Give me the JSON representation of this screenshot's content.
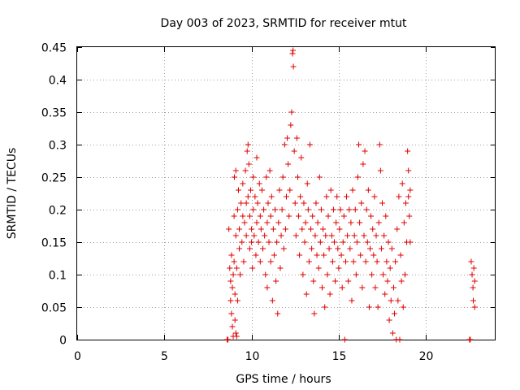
{
  "chart_data": {
    "type": "scatter",
    "title": "Day 003 of 2023, SRMTID for receiver mtut",
    "xlabel": "GPS time / hours",
    "ylabel": "SRMTID / TECUs",
    "xlim": [
      0,
      24
    ],
    "ylim": [
      0,
      0.45
    ],
    "xticks": [
      "0",
      "5",
      "10",
      "15",
      "20"
    ],
    "yticks": [
      "0",
      "0.05",
      "0.1",
      "0.15",
      "0.2",
      "0.25",
      "0.3",
      "0.35",
      "0.4",
      "0.45"
    ],
    "grid": true,
    "marker": "plus",
    "color": "#e00000",
    "series": [
      {
        "name": "SRMTID",
        "points": [
          [
            8.6,
            0.0
          ],
          [
            8.65,
            0.0
          ],
          [
            8.7,
            0.17
          ],
          [
            8.75,
            0.11
          ],
          [
            8.8,
            0.09
          ],
          [
            8.8,
            0.06
          ],
          [
            8.85,
            0.04
          ],
          [
            8.85,
            0.13
          ],
          [
            8.9,
            0.08
          ],
          [
            8.9,
            0.02
          ],
          [
            8.95,
            0.005
          ],
          [
            8.95,
            0.1
          ],
          [
            9.0,
            0.19
          ],
          [
            9.0,
            0.12
          ],
          [
            9.02,
            0.25
          ],
          [
            9.05,
            0.07
          ],
          [
            9.05,
            0.03
          ],
          [
            9.1,
            0.26
          ],
          [
            9.1,
            0.16
          ],
          [
            9.1,
            0.01
          ],
          [
            9.15,
            0.11
          ],
          [
            9.15,
            0.005
          ],
          [
            9.2,
            0.06
          ],
          [
            9.2,
            0.2
          ],
          [
            9.25,
            0.23
          ],
          [
            9.3,
            0.14
          ],
          [
            9.3,
            0.17
          ],
          [
            9.35,
            0.1
          ],
          [
            9.4,
            0.21
          ],
          [
            9.45,
            0.15
          ],
          [
            9.5,
            0.19
          ],
          [
            9.5,
            0.24
          ],
          [
            9.55,
            0.12
          ],
          [
            9.6,
            0.18
          ],
          [
            9.65,
            0.26
          ],
          [
            9.7,
            0.16
          ],
          [
            9.7,
            0.21
          ],
          [
            9.75,
            0.29
          ],
          [
            9.8,
            0.3
          ],
          [
            9.8,
            0.22
          ],
          [
            9.85,
            0.27
          ],
          [
            9.9,
            0.14
          ],
          [
            9.9,
            0.19
          ],
          [
            9.95,
            0.23
          ],
          [
            10.0,
            0.15
          ],
          [
            10.0,
            0.17
          ],
          [
            10.05,
            0.11
          ],
          [
            10.1,
            0.2
          ],
          [
            10.1,
            0.25
          ],
          [
            10.15,
            0.16
          ],
          [
            10.2,
            0.22
          ],
          [
            10.25,
            0.13
          ],
          [
            10.3,
            0.28
          ],
          [
            10.3,
            0.18
          ],
          [
            10.35,
            0.21
          ],
          [
            10.4,
            0.15
          ],
          [
            10.45,
            0.24
          ],
          [
            10.5,
            0.19
          ],
          [
            10.5,
            0.12
          ],
          [
            10.55,
            0.17
          ],
          [
            10.6,
            0.23
          ],
          [
            10.65,
            0.14
          ],
          [
            10.7,
            0.2
          ],
          [
            10.75,
            0.16
          ],
          [
            10.8,
            0.1
          ],
          [
            10.85,
            0.25
          ],
          [
            10.9,
            0.18
          ],
          [
            10.9,
            0.08
          ],
          [
            10.95,
            0.21
          ],
          [
            11.0,
            0.15
          ],
          [
            11.05,
            0.26
          ],
          [
            11.1,
            0.12
          ],
          [
            11.1,
            0.19
          ],
          [
            11.15,
            0.22
          ],
          [
            11.2,
            0.06
          ],
          [
            11.25,
            0.17
          ],
          [
            11.3,
            0.13
          ],
          [
            11.35,
            0.2
          ],
          [
            11.4,
            0.09
          ],
          [
            11.45,
            0.15
          ],
          [
            11.5,
            0.04
          ],
          [
            11.55,
            0.18
          ],
          [
            11.6,
            0.23
          ],
          [
            11.65,
            0.11
          ],
          [
            11.7,
            0.16
          ],
          [
            11.75,
            0.2
          ],
          [
            11.8,
            0.25
          ],
          [
            11.85,
            0.14
          ],
          [
            11.9,
            0.3
          ],
          [
            11.95,
            0.17
          ],
          [
            12.0,
            0.22
          ],
          [
            12.05,
            0.31
          ],
          [
            12.1,
            0.27
          ],
          [
            12.15,
            0.19
          ],
          [
            12.2,
            0.23
          ],
          [
            12.25,
            0.33
          ],
          [
            12.3,
            0.35
          ],
          [
            12.35,
            0.44
          ],
          [
            12.38,
            0.445
          ],
          [
            12.4,
            0.42
          ],
          [
            12.45,
            0.29
          ],
          [
            12.5,
            0.21
          ],
          [
            12.55,
            0.16
          ],
          [
            12.6,
            0.31
          ],
          [
            12.65,
            0.25
          ],
          [
            12.7,
            0.19
          ],
          [
            12.75,
            0.13
          ],
          [
            12.8,
            0.22
          ],
          [
            12.85,
            0.28
          ],
          [
            12.9,
            0.17
          ],
          [
            12.95,
            0.1
          ],
          [
            13.0,
            0.21
          ],
          [
            13.05,
            0.15
          ],
          [
            13.1,
            0.18
          ],
          [
            13.15,
            0.07
          ],
          [
            13.2,
            0.24
          ],
          [
            13.25,
            0.2
          ],
          [
            13.3,
            0.12
          ],
          [
            13.35,
            0.3
          ],
          [
            13.4,
            0.17
          ],
          [
            13.45,
            0.14
          ],
          [
            13.5,
            0.19
          ],
          [
            13.55,
            0.09
          ],
          [
            13.6,
            0.04
          ],
          [
            13.65,
            0.16
          ],
          [
            13.7,
            0.21
          ],
          [
            13.75,
            0.13
          ],
          [
            13.8,
            0.18
          ],
          [
            13.85,
            0.11
          ],
          [
            13.9,
            0.25
          ],
          [
            13.95,
            0.15
          ],
          [
            14.0,
            0.2
          ],
          [
            14.05,
            0.08
          ],
          [
            14.1,
            0.17
          ],
          [
            14.15,
            0.13
          ],
          [
            14.2,
            0.05
          ],
          [
            14.25,
            0.16
          ],
          [
            14.3,
            0.22
          ],
          [
            14.35,
            0.1
          ],
          [
            14.4,
            0.19
          ],
          [
            14.45,
            0.14
          ],
          [
            14.5,
            0.07
          ],
          [
            14.55,
            0.23
          ],
          [
            14.6,
            0.16
          ],
          [
            14.65,
            0.12
          ],
          [
            14.7,
            0.2
          ],
          [
            14.75,
            0.15
          ],
          [
            14.8,
            0.09
          ],
          [
            14.85,
            0.18
          ],
          [
            14.9,
            0.22
          ],
          [
            14.95,
            0.14
          ],
          [
            15.0,
            0.11
          ],
          [
            15.05,
            0.17
          ],
          [
            15.1,
            0.2
          ],
          [
            15.15,
            0.13
          ],
          [
            15.2,
            0.08
          ],
          [
            15.25,
            0.15
          ],
          [
            15.3,
            0.19
          ],
          [
            15.35,
            0.0
          ],
          [
            15.4,
            0.12
          ],
          [
            15.45,
            0.22
          ],
          [
            15.5,
            0.16
          ],
          [
            15.55,
            0.09
          ],
          [
            15.6,
            0.2
          ],
          [
            15.65,
            0.14
          ],
          [
            15.7,
            0.18
          ],
          [
            15.75,
            0.06
          ],
          [
            15.8,
            0.23
          ],
          [
            15.85,
            0.12
          ],
          [
            15.9,
            0.16
          ],
          [
            15.95,
            0.2
          ],
          [
            16.0,
            0.1
          ],
          [
            16.05,
            0.15
          ],
          [
            16.1,
            0.25
          ],
          [
            16.15,
            0.3
          ],
          [
            16.2,
            0.18
          ],
          [
            16.25,
            0.13
          ],
          [
            16.3,
            0.21
          ],
          [
            16.35,
            0.08
          ],
          [
            16.4,
            0.27
          ],
          [
            16.45,
            0.16
          ],
          [
            16.5,
            0.29
          ],
          [
            16.55,
            0.12
          ],
          [
            16.6,
            0.2
          ],
          [
            16.65,
            0.15
          ],
          [
            16.7,
            0.23
          ],
          [
            16.75,
            0.05
          ],
          [
            16.8,
            0.14
          ],
          [
            16.85,
            0.19
          ],
          [
            16.9,
            0.1
          ],
          [
            16.95,
            0.17
          ],
          [
            17.0,
            0.13
          ],
          [
            17.05,
            0.22
          ],
          [
            17.1,
            0.08
          ],
          [
            17.15,
            0.16
          ],
          [
            17.2,
            0.12
          ],
          [
            17.25,
            0.05
          ],
          [
            17.3,
            0.18
          ],
          [
            17.35,
            0.3
          ],
          [
            17.4,
            0.26
          ],
          [
            17.45,
            0.14
          ],
          [
            17.5,
            0.21
          ],
          [
            17.55,
            0.1
          ],
          [
            17.6,
            0.16
          ],
          [
            17.65,
            0.07
          ],
          [
            17.7,
            0.19
          ],
          [
            17.75,
            0.12
          ],
          [
            17.8,
            0.09
          ],
          [
            17.85,
            0.15
          ],
          [
            17.9,
            0.03
          ],
          [
            17.95,
            0.11
          ],
          [
            18.0,
            0.06
          ],
          [
            18.05,
            0.14
          ],
          [
            18.1,
            0.01
          ],
          [
            18.15,
            0.08
          ],
          [
            18.2,
            0.04
          ],
          [
            18.25,
            0.12
          ],
          [
            18.3,
            0.0
          ],
          [
            18.35,
            0.17
          ],
          [
            18.4,
            0.06
          ],
          [
            18.45,
            0.22
          ],
          [
            18.5,
            0.0
          ],
          [
            18.55,
            0.13
          ],
          [
            18.6,
            0.09
          ],
          [
            18.65,
            0.24
          ],
          [
            18.7,
            0.05
          ],
          [
            18.75,
            0.18
          ],
          [
            18.8,
            0.1
          ],
          [
            18.85,
            0.21
          ],
          [
            18.9,
            0.15
          ],
          [
            18.95,
            0.29
          ],
          [
            19.0,
            0.26
          ],
          [
            19.0,
            0.22
          ],
          [
            19.05,
            0.19
          ],
          [
            19.1,
            0.15
          ],
          [
            19.1,
            0.23
          ],
          [
            22.5,
            0.0
          ],
          [
            22.55,
            0.0
          ],
          [
            22.6,
            0.12
          ],
          [
            22.65,
            0.1
          ],
          [
            22.7,
            0.08
          ],
          [
            22.72,
            0.06
          ],
          [
            22.75,
            0.11
          ],
          [
            22.8,
            0.05
          ],
          [
            22.8,
            0.09
          ]
        ]
      }
    ]
  }
}
